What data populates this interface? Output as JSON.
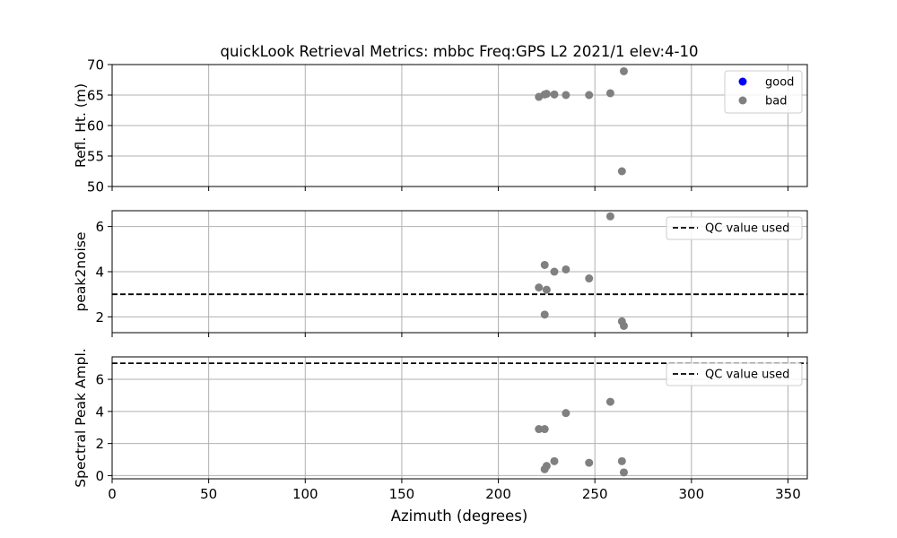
{
  "figure": {
    "title": "quickLook Retrieval Metrics: mbbc Freq:GPS L2 2021/1  elev:4-10",
    "xlabel": "Azimuth (degrees)"
  },
  "colors": {
    "good": "#0000ff",
    "bad": "#808080",
    "grid": "#b0b0b0",
    "qc_line": "#000000"
  },
  "chart_data": [
    {
      "type": "scatter",
      "ylabel": "Refl. Ht. (m)",
      "xlim": [
        0,
        360
      ],
      "ylim": [
        50,
        70
      ],
      "xticks": [
        0,
        50,
        100,
        150,
        200,
        250,
        300,
        350
      ],
      "yticks": [
        50,
        55,
        60,
        65,
        70
      ],
      "show_xtick_labels": false,
      "grid": true,
      "legend": {
        "placement": "top-right",
        "entries": [
          {
            "label": "good",
            "kind": "marker",
            "color_key": "good"
          },
          {
            "label": "bad",
            "kind": "marker",
            "color_key": "bad"
          }
        ]
      },
      "series": [
        {
          "name": "good",
          "color_key": "good",
          "x": [],
          "y": []
        },
        {
          "name": "bad",
          "color_key": "bad",
          "x": [
            221,
            224,
            225,
            229,
            235,
            247,
            258,
            265,
            264
          ],
          "y": [
            64.7,
            65.1,
            65.2,
            65.1,
            65.0,
            65.0,
            65.3,
            68.9,
            52.5
          ]
        }
      ]
    },
    {
      "type": "scatter",
      "ylabel": "peak2noise",
      "xlim": [
        0,
        360
      ],
      "ylim": [
        1.3,
        6.7
      ],
      "xticks": [
        0,
        50,
        100,
        150,
        200,
        250,
        300,
        350
      ],
      "yticks": [
        2,
        4,
        6
      ],
      "show_xtick_labels": false,
      "grid": true,
      "qc_value": 3.0,
      "legend": {
        "placement": "top-right",
        "entries": [
          {
            "label": "QC value used",
            "kind": "dashed-line",
            "color_key": "qc_line"
          }
        ]
      },
      "series": [
        {
          "name": "bad",
          "color_key": "bad",
          "x": [
            258,
            224,
            235,
            229,
            247,
            221,
            225,
            224,
            264,
            265
          ],
          "y": [
            6.45,
            4.3,
            4.1,
            4.0,
            3.7,
            3.3,
            3.2,
            2.1,
            1.8,
            1.6
          ]
        }
      ]
    },
    {
      "type": "scatter",
      "ylabel": "Spectral Peak Ampl.",
      "xlim": [
        0,
        360
      ],
      "ylim": [
        -0.2,
        7.4
      ],
      "xticks": [
        0,
        50,
        100,
        150,
        200,
        250,
        300,
        350
      ],
      "yticks": [
        0,
        2,
        4,
        6
      ],
      "show_xtick_labels": true,
      "grid": true,
      "qc_value": 7.0,
      "legend": {
        "placement": "top-right",
        "entries": [
          {
            "label": "QC value used",
            "kind": "dashed-line",
            "color_key": "qc_line"
          }
        ]
      },
      "series": [
        {
          "name": "bad",
          "color_key": "bad",
          "x": [
            258,
            235,
            221,
            224,
            229,
            247,
            264,
            225,
            224,
            265
          ],
          "y": [
            4.6,
            3.9,
            2.9,
            2.9,
            0.9,
            0.8,
            0.9,
            0.6,
            0.4,
            0.2
          ]
        }
      ]
    }
  ]
}
